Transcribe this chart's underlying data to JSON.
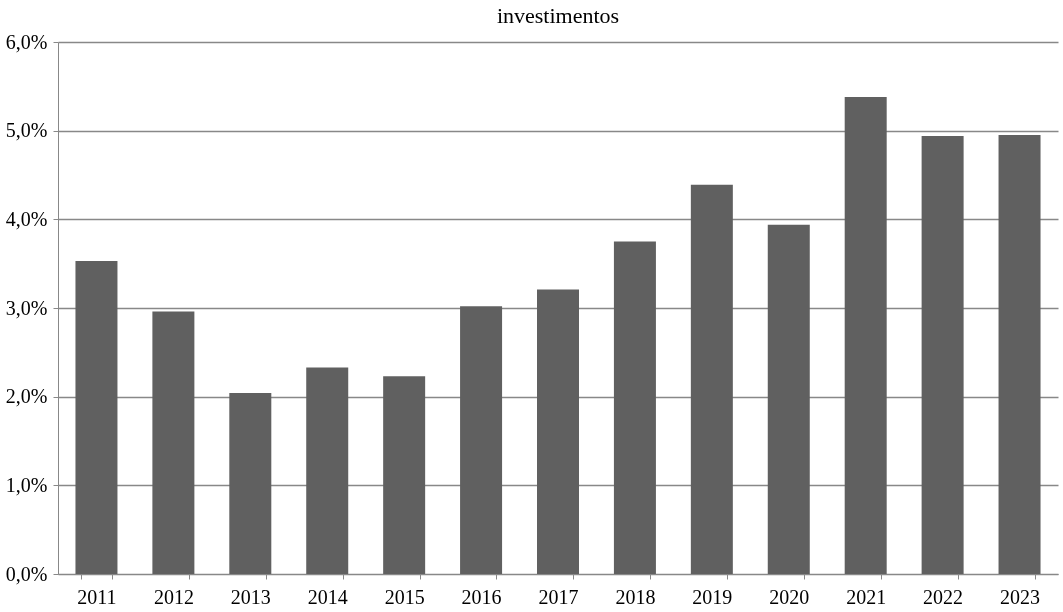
{
  "chart_data": {
    "type": "bar",
    "title": "investimentos",
    "categories": [
      "2011",
      "2012",
      "2013",
      "2014",
      "2015",
      "2016",
      "2017",
      "2018",
      "2019",
      "2020",
      "2021",
      "2022",
      "2023"
    ],
    "values": [
      3.53,
      2.96,
      2.04,
      2.33,
      2.23,
      3.02,
      3.21,
      3.75,
      4.39,
      3.94,
      5.38,
      4.94,
      4.95
    ],
    "color": "#606060",
    "ylim": [
      0,
      6
    ],
    "yticks": [
      {
        "value": 0,
        "label": "0,0%"
      },
      {
        "value": 1,
        "label": "1,0%"
      },
      {
        "value": 2,
        "label": "2,0%"
      },
      {
        "value": 3,
        "label": "3,0%"
      },
      {
        "value": 4,
        "label": "4,0%"
      },
      {
        "value": 5,
        "label": "5,0%"
      },
      {
        "value": 6,
        "label": "6,0%"
      }
    ],
    "grid": "y"
  }
}
